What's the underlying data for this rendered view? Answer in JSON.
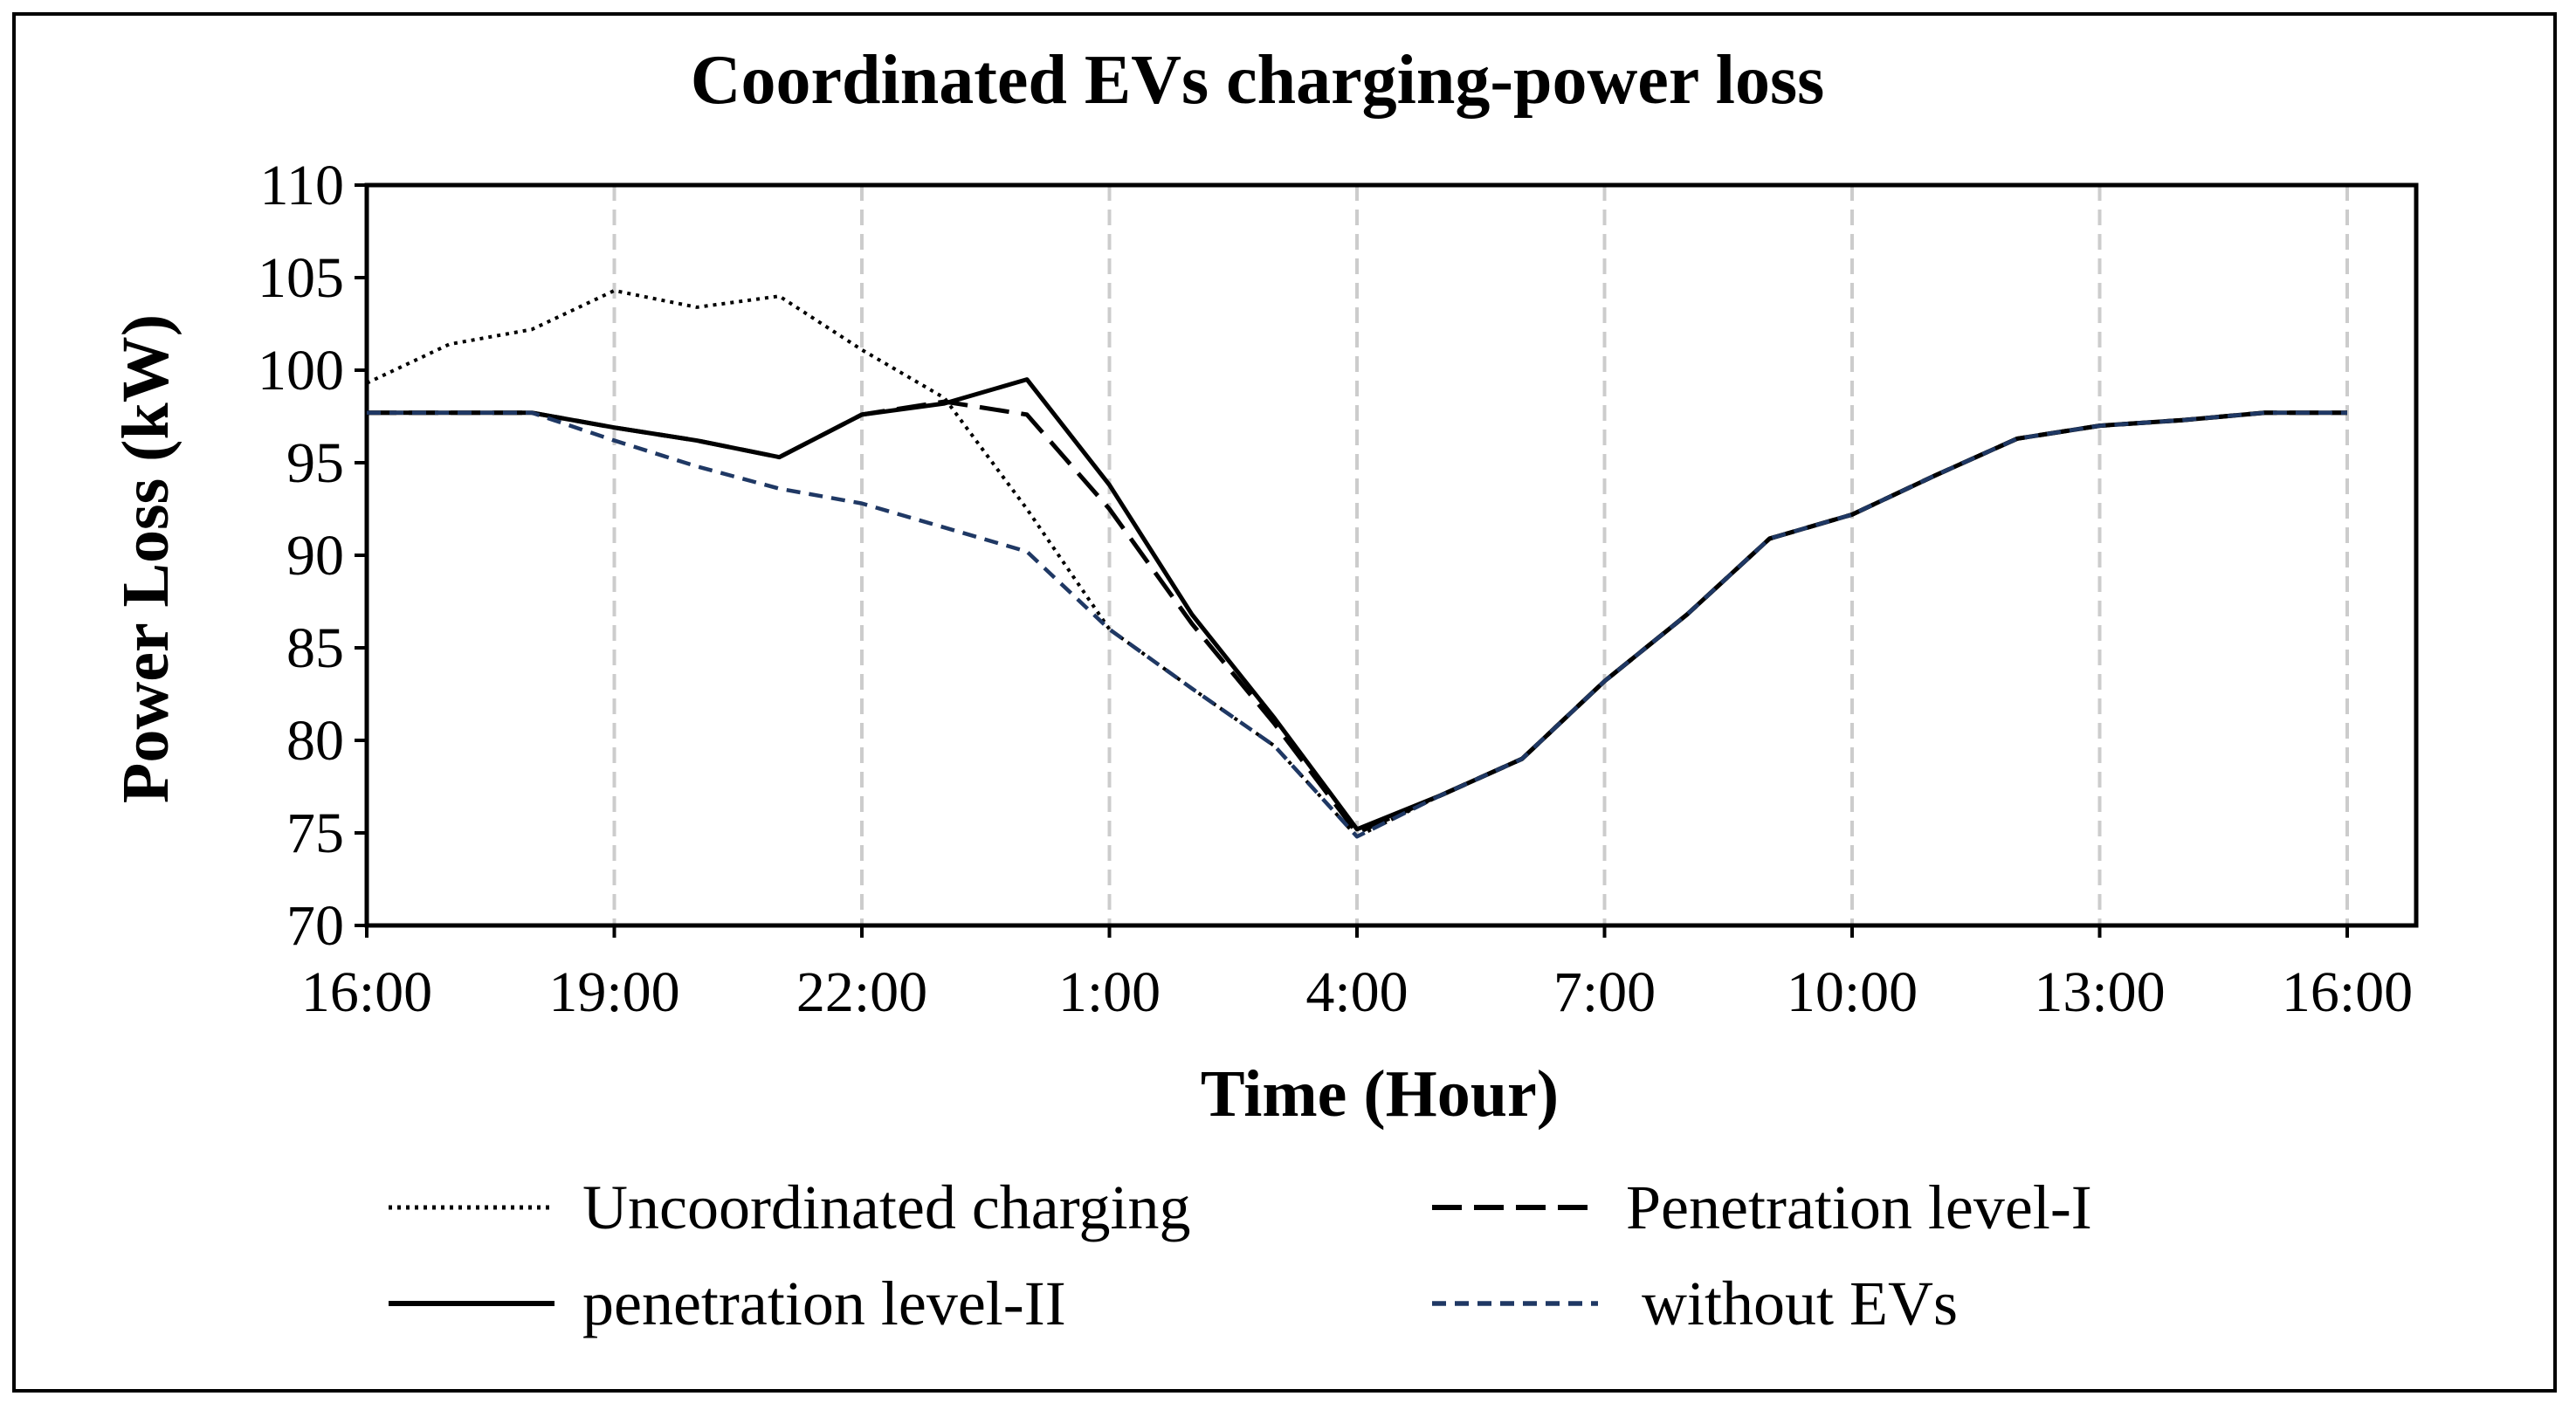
{
  "chart_data": {
    "type": "line",
    "title": "Coordinated EVs charging-power loss",
    "xlabel": "Time (Hour)",
    "ylabel": "Power Loss (kW)",
    "ylim": [
      70,
      110
    ],
    "yticks": [
      "70",
      "75",
      "80",
      "85",
      "90",
      "95",
      "100",
      "105",
      "110"
    ],
    "xticks": [
      "16:00",
      "19:00",
      "22:00",
      "1:00",
      "4:00",
      "7:00",
      "10:00",
      "13:00",
      "16:00"
    ],
    "x_hours_from_start": [
      0,
      1,
      2,
      3,
      4,
      5,
      6,
      7,
      8,
      9,
      10,
      11,
      12,
      13,
      14,
      15,
      16,
      17,
      18,
      19,
      20,
      21,
      22,
      23,
      24
    ],
    "grid": "vertical dashed",
    "legend_position": "bottom",
    "series": [
      {
        "name": "Uncoordinated charging",
        "style": "dotted",
        "color": "#000000",
        "values": [
          99.3,
          101.4,
          102.2,
          104.3,
          103.4,
          104.0,
          101.1,
          98.5,
          92.5,
          86.0,
          82.8,
          79.7,
          74.8,
          77.0,
          79.0,
          83.2,
          86.8,
          90.9,
          92.2,
          94.3,
          96.3,
          97.0,
          97.3,
          97.7,
          97.7
        ]
      },
      {
        "name": "Penetration level-I",
        "style": "long-dash",
        "color": "#000000",
        "values": [
          97.7,
          97.7,
          97.7,
          96.9,
          96.2,
          95.3,
          97.6,
          98.3,
          97.6,
          92.5,
          86.3,
          80.9,
          75.0,
          77.0,
          79.0,
          83.2,
          86.8,
          90.9,
          92.2,
          94.3,
          96.3,
          97.0,
          97.3,
          97.7,
          97.7
        ]
      },
      {
        "name": "penetration level-II",
        "style": "solid",
        "color": "#000000",
        "values": [
          97.7,
          97.7,
          97.7,
          96.9,
          96.2,
          95.3,
          97.6,
          98.2,
          99.5,
          93.8,
          86.8,
          81.2,
          75.2,
          77.0,
          79.0,
          83.2,
          86.8,
          90.9,
          92.2,
          94.3,
          96.3,
          97.0,
          97.3,
          97.7,
          97.7
        ]
      },
      {
        "name": " without EVs",
        "style": "dashed",
        "color": "#1f3864",
        "values": [
          97.7,
          97.7,
          97.7,
          96.2,
          94.8,
          93.6,
          92.8,
          91.5,
          90.2,
          86.0,
          82.8,
          79.7,
          74.8,
          77.0,
          79.0,
          83.2,
          86.8,
          90.9,
          92.2,
          94.3,
          96.3,
          97.0,
          97.3,
          97.7,
          97.7
        ]
      }
    ]
  }
}
